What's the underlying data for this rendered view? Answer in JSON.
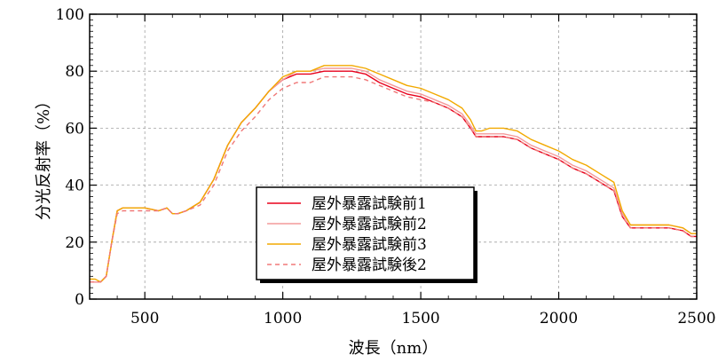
{
  "chart_data": {
    "type": "line",
    "xlabel": "波長（nm）",
    "ylabel": "分光反射率（%）",
    "xlim": [
      300,
      2500
    ],
    "ylim": [
      0,
      100
    ],
    "xticks": [
      500,
      1000,
      1500,
      2000,
      2500
    ],
    "yticks": [
      0,
      20,
      40,
      60,
      80,
      100
    ],
    "grid": true,
    "legend_position": "bottom-center",
    "series": [
      {
        "name": "屋外暴露試験前1",
        "color": "#e8001c",
        "dash": "solid",
        "x": [
          300,
          320,
          340,
          360,
          380,
          400,
          420,
          450,
          500,
          550,
          580,
          600,
          620,
          650,
          700,
          750,
          800,
          850,
          900,
          950,
          1000,
          1050,
          1100,
          1150,
          1200,
          1250,
          1300,
          1350,
          1400,
          1450,
          1500,
          1550,
          1600,
          1650,
          1680,
          1700,
          1720,
          1750,
          1800,
          1850,
          1900,
          1950,
          2000,
          2050,
          2100,
          2150,
          2200,
          2230,
          2260,
          2300,
          2350,
          2400,
          2450,
          2480,
          2500
        ],
        "y": [
          6,
          6,
          6,
          8,
          20,
          31,
          32,
          32,
          32,
          31,
          32,
          30,
          30,
          31,
          34,
          42,
          54,
          62,
          67,
          73,
          77,
          79,
          79,
          80,
          80,
          80,
          79,
          76,
          74,
          72,
          71,
          69,
          67,
          64,
          60,
          57,
          57,
          57,
          57,
          56,
          53,
          51,
          49,
          46,
          44,
          41,
          38,
          29,
          25,
          25,
          25,
          25,
          24,
          22,
          22
        ]
      },
      {
        "name": "屋外暴露試験前2",
        "color": "#f49a9a",
        "dash": "solid",
        "x": [
          300,
          320,
          340,
          360,
          380,
          400,
          420,
          450,
          500,
          550,
          580,
          600,
          620,
          650,
          700,
          750,
          800,
          850,
          900,
          950,
          1000,
          1050,
          1100,
          1150,
          1200,
          1250,
          1300,
          1350,
          1400,
          1450,
          1500,
          1550,
          1600,
          1650,
          1680,
          1700,
          1720,
          1750,
          1800,
          1850,
          1900,
          1950,
          2000,
          2050,
          2100,
          2150,
          2200,
          2230,
          2260,
          2300,
          2350,
          2400,
          2450,
          2480,
          2500
        ],
        "y": [
          6,
          6,
          6,
          8,
          20,
          31,
          32,
          32,
          32,
          31,
          32,
          30,
          30,
          31,
          34,
          42,
          54,
          62,
          67,
          73,
          77,
          80,
          80,
          81,
          81,
          81,
          80,
          77,
          75,
          73,
          72,
          70,
          68,
          65,
          61,
          58,
          58,
          58,
          58,
          57,
          54,
          52,
          50,
          47,
          45,
          42,
          39,
          30,
          26,
          26,
          26,
          26,
          25,
          23,
          23
        ]
      },
      {
        "name": "屋外暴露試験前3",
        "color": "#f2a900",
        "dash": "solid",
        "x": [
          300,
          320,
          340,
          360,
          380,
          400,
          420,
          450,
          500,
          550,
          580,
          600,
          620,
          650,
          700,
          750,
          800,
          850,
          900,
          950,
          1000,
          1050,
          1100,
          1150,
          1200,
          1250,
          1300,
          1350,
          1400,
          1450,
          1500,
          1550,
          1600,
          1650,
          1680,
          1700,
          1720,
          1750,
          1800,
          1850,
          1900,
          1950,
          2000,
          2050,
          2100,
          2150,
          2200,
          2230,
          2260,
          2300,
          2350,
          2400,
          2450,
          2480,
          2500
        ],
        "y": [
          7,
          7,
          6,
          8,
          20,
          31,
          32,
          32,
          32,
          31,
          32,
          30,
          30,
          31,
          34,
          42,
          54,
          62,
          67,
          73,
          78,
          80,
          80,
          82,
          82,
          82,
          81,
          79,
          77,
          75,
          74,
          72,
          70,
          67,
          63,
          59,
          59,
          60,
          60,
          59,
          56,
          54,
          52,
          49,
          47,
          44,
          41,
          31,
          26,
          26,
          26,
          26,
          25,
          23,
          23
        ]
      },
      {
        "name": "屋外暴露試験後2",
        "color": "#f07878",
        "dash": "dashed",
        "x": [
          300,
          320,
          340,
          360,
          380,
          400,
          420,
          450,
          500,
          550,
          580,
          600,
          620,
          650,
          700,
          750,
          800,
          850,
          900,
          950,
          1000,
          1050,
          1100,
          1150,
          1200,
          1250,
          1300,
          1350,
          1400,
          1450,
          1500,
          1550,
          1600,
          1650,
          1680,
          1700,
          1720,
          1750,
          1800,
          1850,
          1900,
          1950,
          2000,
          2050,
          2100,
          2150,
          2200,
          2230,
          2260,
          2300,
          2350,
          2400,
          2450,
          2480,
          2500
        ],
        "y": [
          6,
          6,
          6,
          8,
          20,
          30,
          31,
          31,
          31,
          31,
          32,
          30,
          30,
          31,
          33,
          40,
          52,
          59,
          64,
          70,
          74,
          76,
          76,
          78,
          78,
          78,
          77,
          75,
          73,
          71,
          70,
          69,
          67,
          64,
          60,
          57,
          57,
          57,
          57,
          56,
          53,
          51,
          49,
          46,
          44,
          41,
          38,
          29,
          25,
          25,
          25,
          25,
          24,
          22,
          22
        ]
      }
    ]
  }
}
